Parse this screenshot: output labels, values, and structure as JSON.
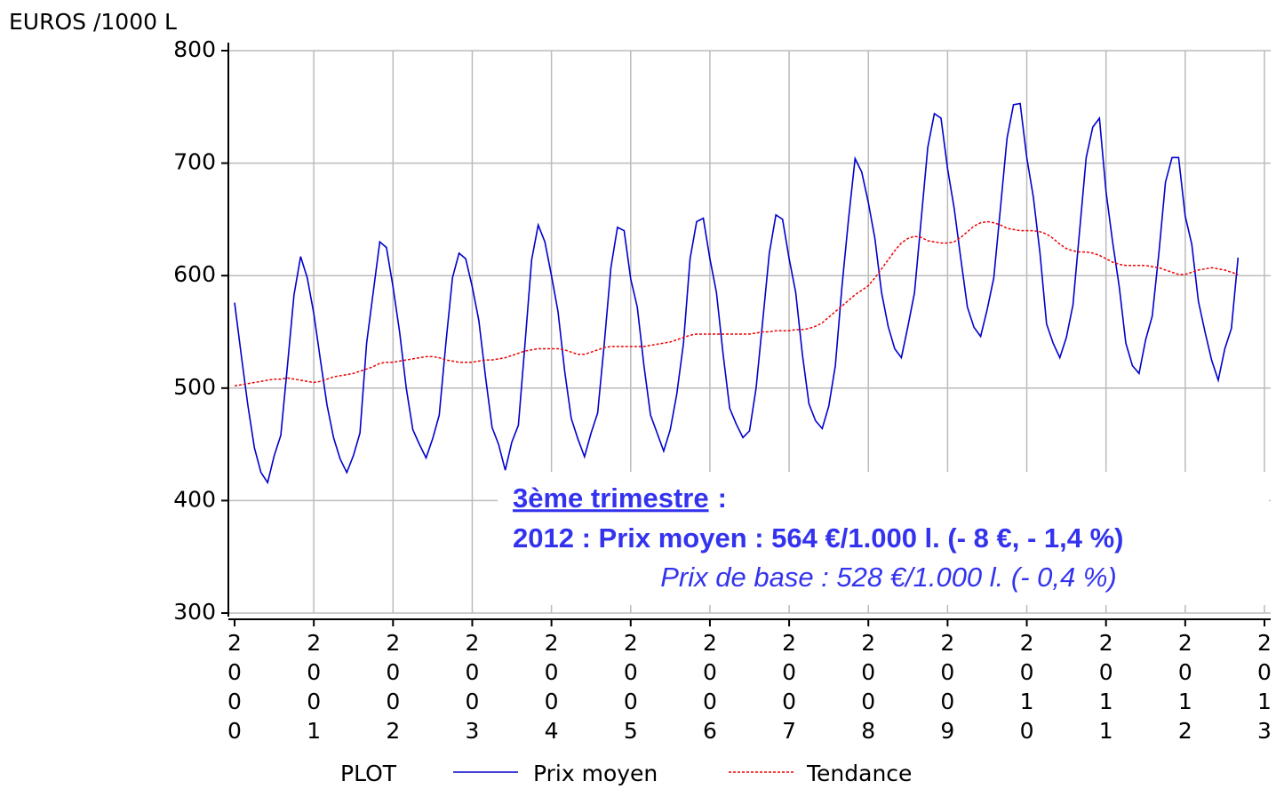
{
  "chart_data": {
    "type": "line",
    "y_label": "EUROS /1000 L",
    "legend_title": "PLOT",
    "annotations": [
      "3ème trimestre",
      ":",
      "2012 : Prix moyen : 564 €/1.000 l. (- 8 €, - 1,4 %)",
      "Prix de base : 528 €/1.000 l. (- 0,4 %)"
    ],
    "xlim": [
      2000,
      2013
    ],
    "xticks": [
      2000,
      2001,
      2002,
      2003,
      2004,
      2005,
      2006,
      2007,
      2008,
      2009,
      2010,
      2011,
      2012,
      2013
    ],
    "ylim": [
      300,
      800
    ],
    "yticks": [
      300,
      400,
      500,
      600,
      700,
      800
    ],
    "grid": true,
    "x": [
      2000,
      2000.083,
      2000.167,
      2000.25,
      2000.333,
      2000.417,
      2000.5,
      2000.583,
      2000.667,
      2000.75,
      2000.833,
      2000.917,
      2001,
      2001.083,
      2001.167,
      2001.25,
      2001.333,
      2001.417,
      2001.5,
      2001.583,
      2001.667,
      2001.75,
      2001.833,
      2001.917,
      2002,
      2002.083,
      2002.167,
      2002.25,
      2002.333,
      2002.417,
      2002.5,
      2002.583,
      2002.667,
      2002.75,
      2002.833,
      2002.917,
      2003,
      2003.083,
      2003.167,
      2003.25,
      2003.333,
      2003.417,
      2003.5,
      2003.583,
      2003.667,
      2003.75,
      2003.833,
      2003.917,
      2004,
      2004.083,
      2004.167,
      2004.25,
      2004.333,
      2004.417,
      2004.5,
      2004.583,
      2004.667,
      2004.75,
      2004.833,
      2004.917,
      2005,
      2005.083,
      2005.167,
      2005.25,
      2005.333,
      2005.417,
      2005.5,
      2005.583,
      2005.667,
      2005.75,
      2005.833,
      2005.917,
      2006,
      2006.083,
      2006.167,
      2006.25,
      2006.333,
      2006.417,
      2006.5,
      2006.583,
      2006.667,
      2006.75,
      2006.833,
      2006.917,
      2007,
      2007.083,
      2007.167,
      2007.25,
      2007.333,
      2007.417,
      2007.5,
      2007.583,
      2007.667,
      2007.75,
      2007.833,
      2007.917,
      2008,
      2008.083,
      2008.167,
      2008.25,
      2008.333,
      2008.417,
      2008.5,
      2008.583,
      2008.667,
      2008.75,
      2008.833,
      2008.917,
      2009,
      2009.083,
      2009.167,
      2009.25,
      2009.333,
      2009.417,
      2009.5,
      2009.583,
      2009.667,
      2009.75,
      2009.833,
      2009.917,
      2010,
      2010.083,
      2010.167,
      2010.25,
      2010.333,
      2010.417,
      2010.5,
      2010.583,
      2010.667,
      2010.75,
      2010.833,
      2010.917,
      2011,
      2011.083,
      2011.167,
      2011.25,
      2011.333,
      2011.417,
      2011.5,
      2011.583,
      2011.667,
      2011.75,
      2011.833,
      2011.917,
      2012,
      2012.083,
      2012.167,
      2012.25,
      2012.333,
      2012.417,
      2012.5,
      2012.583,
      2012.667
    ],
    "series": [
      {
        "name": "Prix moyen",
        "color": "#0000cc",
        "values": [
          576,
          530,
          485,
          447,
          425,
          416,
          440,
          458,
          520,
          583,
          617,
          598,
          566,
          525,
          485,
          456,
          437,
          425,
          440,
          460,
          540,
          585,
          630,
          625,
          590,
          550,
          500,
          463,
          450,
          438,
          455,
          476,
          540,
          598,
          620,
          615,
          590,
          560,
          510,
          465,
          450,
          427,
          452,
          467,
          540,
          614,
          645,
          630,
          600,
          568,
          515,
          473,
          455,
          439,
          460,
          478,
          540,
          607,
          643,
          640,
          597,
          572,
          520,
          476,
          460,
          444,
          463,
          495,
          540,
          615,
          648,
          651,
          615,
          585,
          530,
          482,
          468,
          456,
          462,
          500,
          560,
          620,
          654,
          650,
          615,
          585,
          530,
          486,
          471,
          464,
          484,
          520,
          590,
          650,
          704,
          692,
          665,
          633,
          585,
          555,
          535,
          527,
          555,
          585,
          650,
          714,
          744,
          740,
          695,
          660,
          615,
          572,
          554,
          546,
          570,
          598,
          660,
          722,
          752,
          753,
          705,
          670,
          620,
          557,
          540,
          527,
          545,
          574,
          640,
          705,
          732,
          740,
          675,
          630,
          590,
          540,
          520,
          513,
          543,
          564,
          620,
          683,
          705,
          705,
          653,
          628,
          577,
          550,
          525,
          507,
          535,
          553,
          616
        ]
      },
      {
        "name": "Tendance",
        "color": "#ee0000",
        "dashed": true,
        "values": [
          502,
          503,
          504,
          505,
          506,
          507,
          508,
          508,
          509,
          508,
          507,
          506,
          505,
          506,
          508,
          510,
          511,
          512,
          513,
          515,
          517,
          519,
          522,
          523,
          523,
          524,
          525,
          526,
          527,
          528,
          528,
          527,
          525,
          524,
          523,
          523,
          523,
          524,
          525,
          525,
          526,
          527,
          529,
          531,
          533,
          534,
          535,
          535,
          535,
          535,
          534,
          532,
          530,
          530,
          532,
          534,
          536,
          537,
          537,
          537,
          537,
          537,
          537,
          538,
          539,
          540,
          541,
          543,
          545,
          547,
          548,
          548,
          548,
          548,
          548,
          548,
          548,
          548,
          548,
          549,
          550,
          550,
          551,
          551,
          551,
          552,
          552,
          553,
          555,
          558,
          563,
          568,
          573,
          578,
          583,
          587,
          591,
          598,
          606,
          614,
          622,
          629,
          633,
          635,
          634,
          631,
          630,
          629,
          629,
          630,
          634,
          639,
          644,
          647,
          648,
          647,
          645,
          642,
          641,
          640,
          640,
          640,
          639,
          637,
          633,
          628,
          624,
          622,
          621,
          621,
          620,
          618,
          615,
          612,
          610,
          609,
          609,
          609,
          609,
          608,
          607,
          605,
          603,
          601,
          601,
          603,
          605,
          606,
          607,
          606,
          605,
          603,
          601
        ]
      }
    ]
  }
}
